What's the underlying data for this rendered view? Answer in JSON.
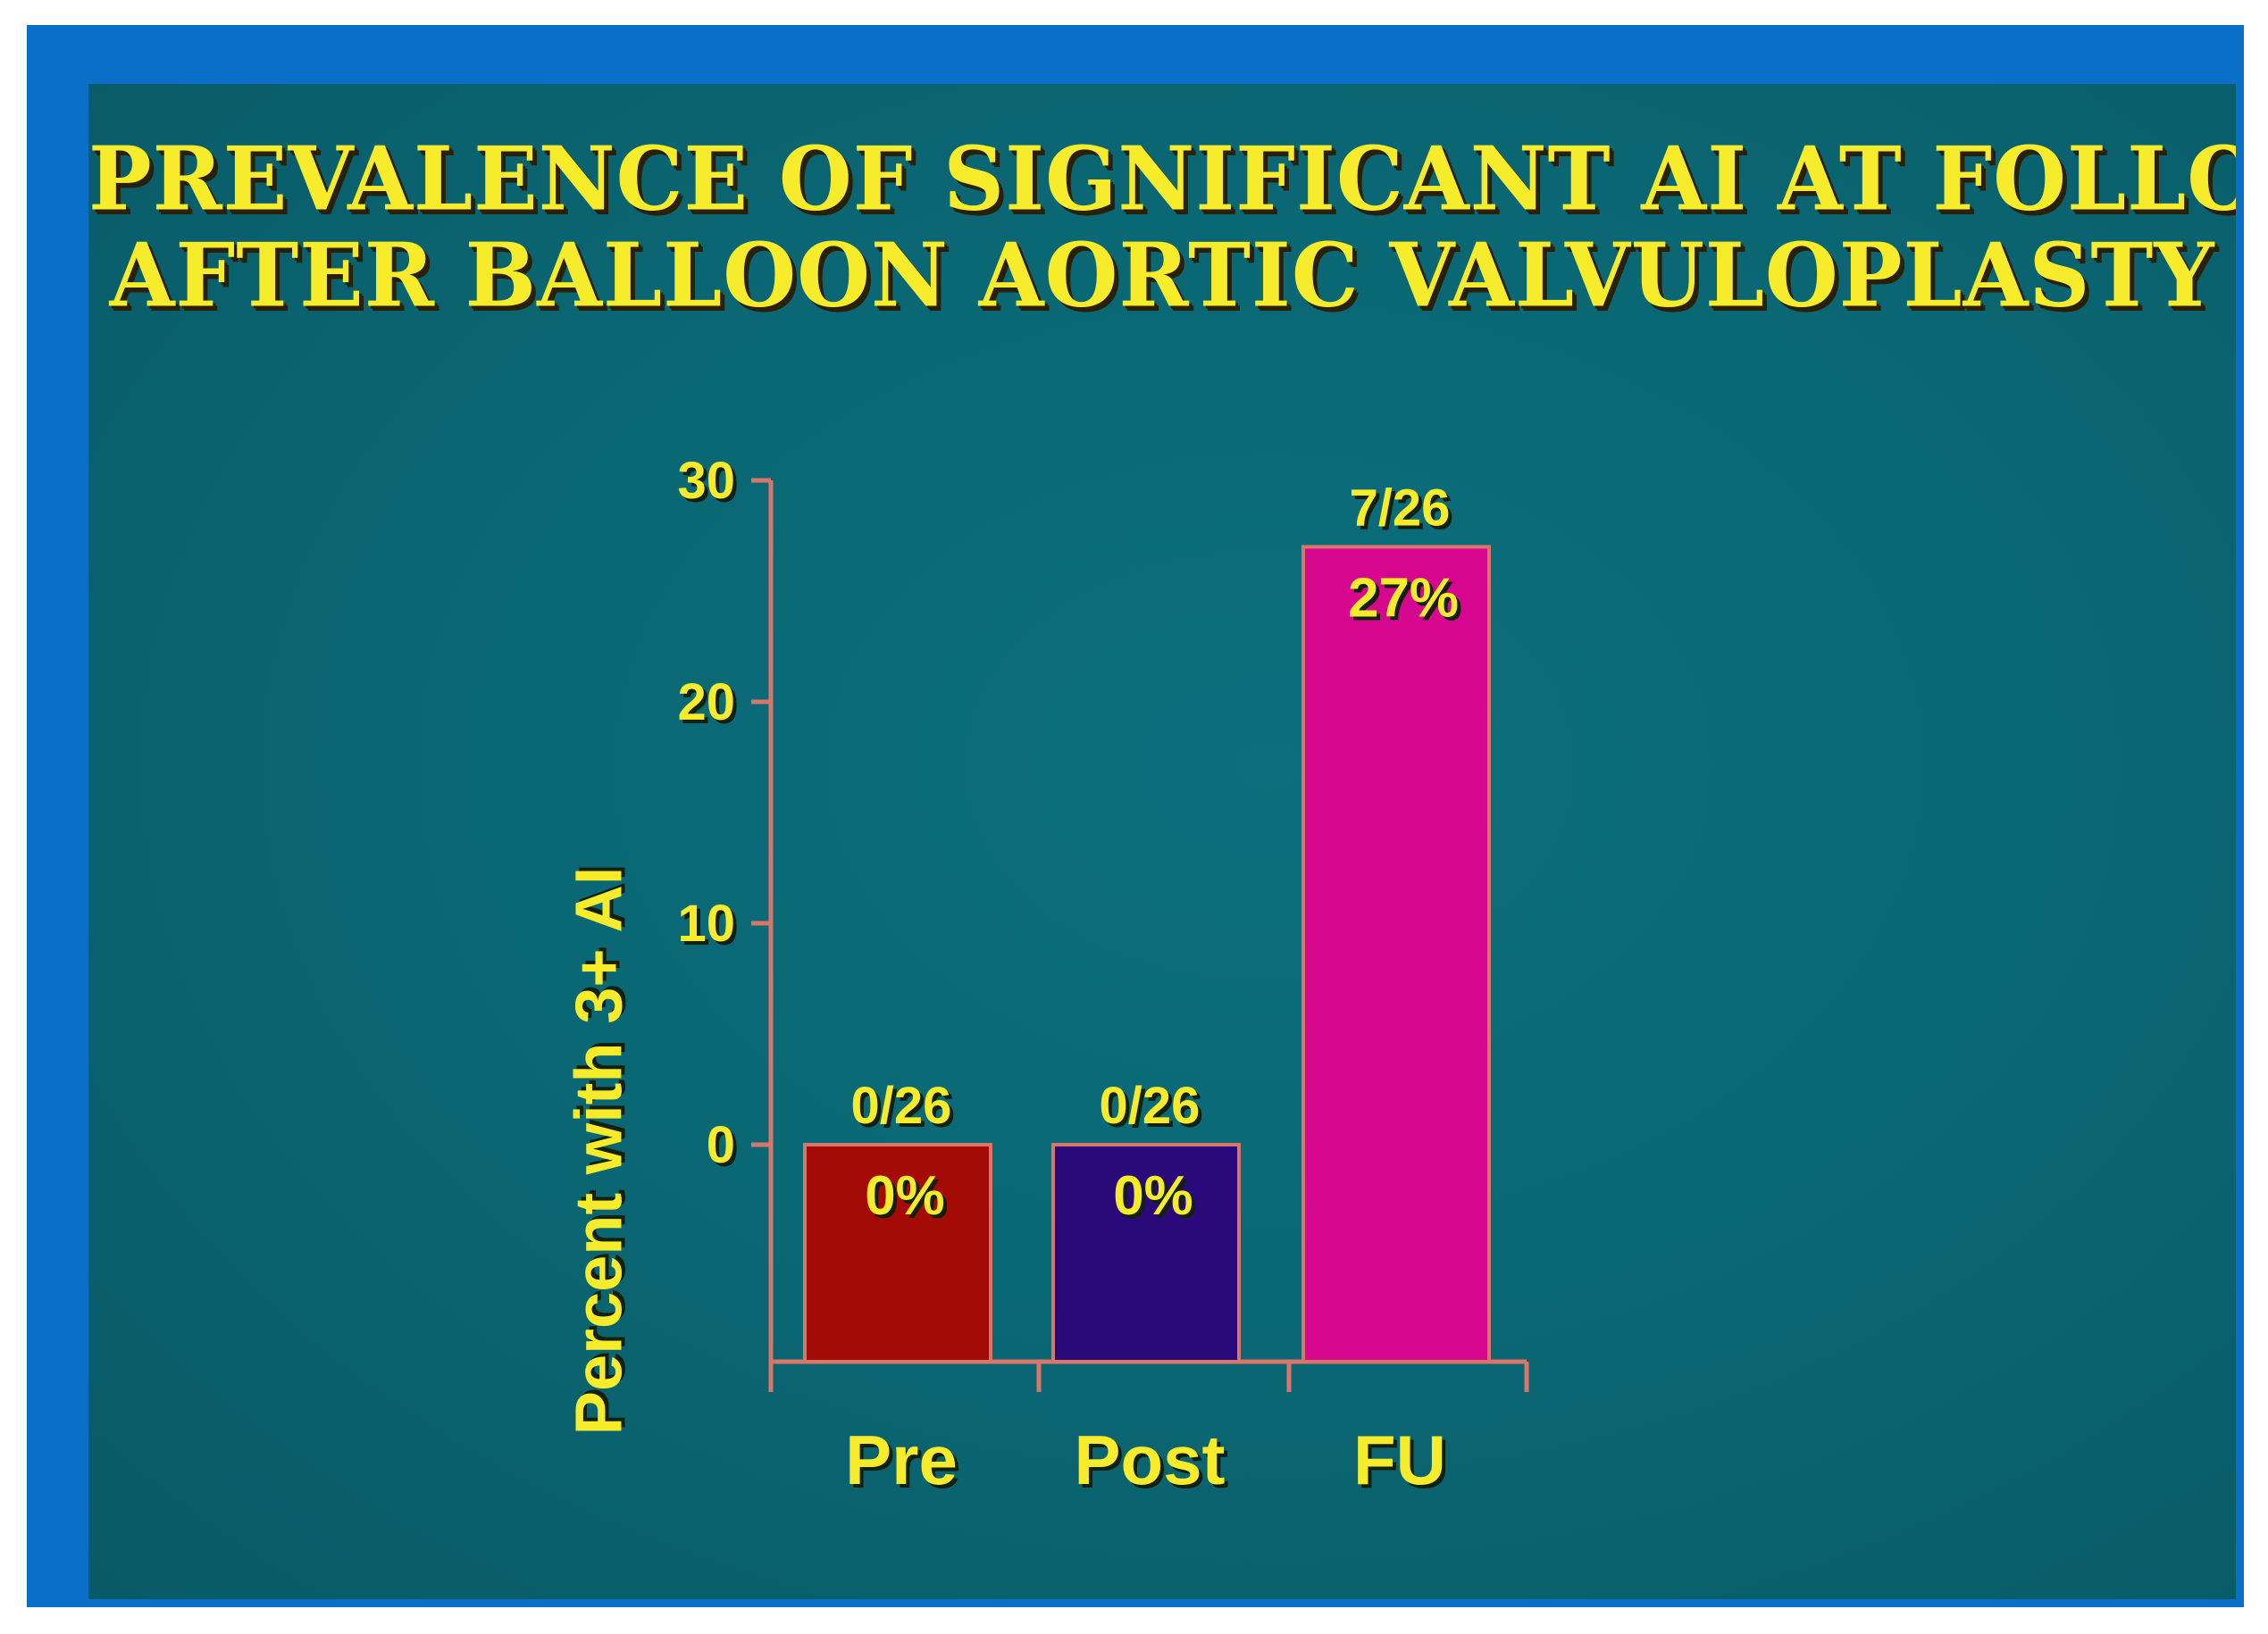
{
  "title": {
    "line1": "PREVALENCE OF SIGNIFICANT AI AT FOLLOW-UP",
    "line2": "AFTER BALLOON AORTIC VALVULOPLASTY"
  },
  "colors": {
    "frame": "#0a6fc7",
    "background": "#0a6672",
    "text": "#f6ec2c",
    "axis": "#d9766a",
    "pre": "#a50b06",
    "post": "#2a0a7a",
    "fu": "#d6068f"
  },
  "chart_data": {
    "type": "bar",
    "title": "PREVALENCE OF SIGNIFICANT AI AT FOLLOW-UP AFTER BALLOON AORTIC VALVULOPLASTY",
    "xlabel": "",
    "ylabel": "Percent with 3+ AI",
    "categories": [
      "Pre",
      "Post",
      "FU"
    ],
    "values": [
      0,
      0,
      27
    ],
    "fractions": [
      "0/26",
      "0/26",
      "7/26"
    ],
    "percent_labels": [
      "0%",
      "0%",
      "27%"
    ],
    "yticks": [
      0,
      10,
      20,
      30
    ],
    "ylim": [
      0,
      30
    ],
    "grid": false,
    "legend": "none"
  }
}
